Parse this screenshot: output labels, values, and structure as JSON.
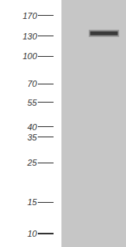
{
  "chart_data": {
    "type": "blot",
    "categories": [
      null,
      null
    ],
    "values": [
      null,
      135
    ],
    "color": "#3a3a3a",
    "log": "y",
    "ylim": [
      8.4,
      208
    ],
    "yticks": [
      170,
      130,
      100,
      70,
      55,
      40,
      35,
      25,
      15,
      10
    ],
    "grid": false,
    "tick_labels": "y"
  }
}
